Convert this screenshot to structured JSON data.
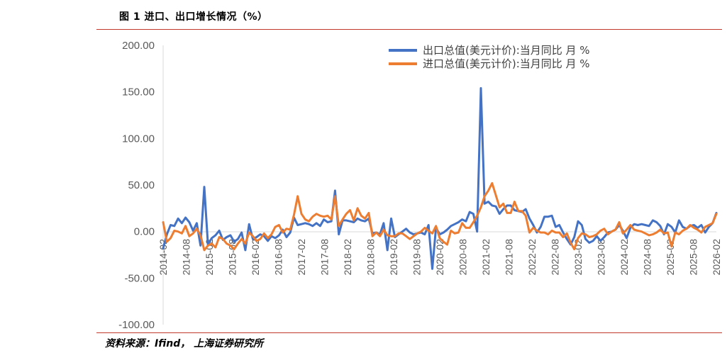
{
  "page": {
    "title": "图 1 进口、出口增长情况（%）",
    "source": "资料来源：Ifind， 上海证券研究所"
  },
  "colors": {
    "export": "#4472C4",
    "import": "#ED7D31",
    "rule": "#C0392B",
    "axis": "#D9D9D9"
  },
  "chart_data": {
    "type": "line",
    "legend_position": "top-right",
    "ylim": [
      -100,
      200
    ],
    "yticks": [
      "200.00",
      "150.00",
      "100.00",
      "50.00",
      "0.00",
      "-50.00",
      "-100.00"
    ],
    "ytick_values": [
      200,
      150,
      100,
      50,
      0,
      -50,
      -100
    ],
    "xtick_labels": [
      "2014-02",
      "2014-08",
      "2015-02",
      "2015-08",
      "2016-02",
      "2016-08",
      "2017-02",
      "2017-08",
      "2018-02",
      "2018-08",
      "2019-02",
      "2019-08",
      "2020-02",
      "2020-08",
      "2021-02",
      "2021-08",
      "2022-02",
      "2022-08",
      "2023-02",
      "2023-08",
      "2024-02",
      "2024-08",
      "2025-02",
      "2025-08",
      "2026-02"
    ],
    "series": [
      {
        "name": "出口总值(美元计价):当月同比 月 %",
        "key": "export",
        "values": [
          -18,
          -3,
          7,
          6,
          14,
          9,
          15,
          10,
          1,
          9,
          -15,
          48,
          -14,
          -7,
          -4,
          1,
          -9,
          -6,
          -4,
          -11,
          -8,
          -1,
          -20,
          8,
          -8,
          -6,
          -3,
          -5,
          -10,
          -5,
          -7,
          -4,
          2,
          -6,
          -1,
          15,
          7,
          8,
          9,
          8,
          6,
          9,
          6,
          13,
          10,
          11,
          44,
          -3,
          12,
          12,
          11,
          10,
          14,
          12,
          11,
          14,
          -2,
          -1,
          -3,
          9,
          -20,
          14,
          -6,
          -3,
          0,
          3,
          -1,
          -3,
          -2,
          -1,
          -3,
          7,
          -40,
          4,
          -3,
          -1,
          2,
          6,
          8,
          10,
          13,
          11,
          21,
          19,
          0,
          154,
          30,
          32,
          28,
          27,
          19,
          24,
          28,
          28,
          23,
          22,
          21,
          24,
          14,
          7,
          -1,
          5,
          16,
          16,
          17,
          5,
          7,
          -1,
          -8,
          -14,
          -6,
          11,
          7,
          -8,
          -12,
          -10,
          -5,
          -10,
          -6,
          -1,
          0,
          2,
          7,
          1,
          -7,
          4,
          8,
          7,
          8,
          7,
          6,
          12,
          10,
          6,
          -3,
          8,
          5,
          -1,
          12,
          5,
          3,
          6,
          7,
          4,
          7,
          -1,
          5,
          9,
          20
        ]
      },
      {
        "name": "进口总值(美元计价):当月同比 月 %",
        "key": "import",
        "values": [
          10,
          -11,
          -7,
          1,
          0,
          -2,
          6,
          -5,
          -2,
          3,
          -4,
          -20,
          -15,
          -13,
          -17,
          -6,
          -8,
          -13,
          -15,
          -19,
          -13,
          -8,
          -13,
          -1,
          -5,
          -10,
          -8,
          -2,
          -7,
          -3,
          5,
          7,
          -1,
          3,
          2,
          18,
          38,
          19,
          13,
          11,
          16,
          19,
          17,
          16,
          17,
          13,
          38,
          6,
          13,
          19,
          23,
          12,
          25,
          17,
          14,
          20,
          -5,
          -1,
          -5,
          2,
          -4,
          -5,
          -5,
          -2,
          -2,
          -5,
          -8,
          -5,
          -2,
          0,
          4,
          1,
          -2,
          6,
          -7,
          -11,
          -14,
          1,
          -2,
          -1,
          9,
          4,
          4,
          10,
          17,
          26,
          38,
          44,
          52,
          39,
          26,
          30,
          20,
          20,
          32,
          22,
          22,
          17,
          -1,
          4,
          1,
          -1,
          -1,
          -3,
          1,
          -1,
          -1,
          -6,
          -2,
          -12,
          -19,
          -7,
          -2,
          -3,
          -6,
          -5,
          -3,
          1,
          3,
          -3,
          0,
          2,
          10,
          -2,
          2,
          7,
          2,
          1,
          0,
          -2,
          -4,
          -3,
          -1,
          2,
          -2,
          -1,
          -16,
          -1,
          -3,
          1,
          3,
          7,
          4,
          2,
          -1,
          5,
          7,
          9,
          19
        ]
      }
    ]
  }
}
